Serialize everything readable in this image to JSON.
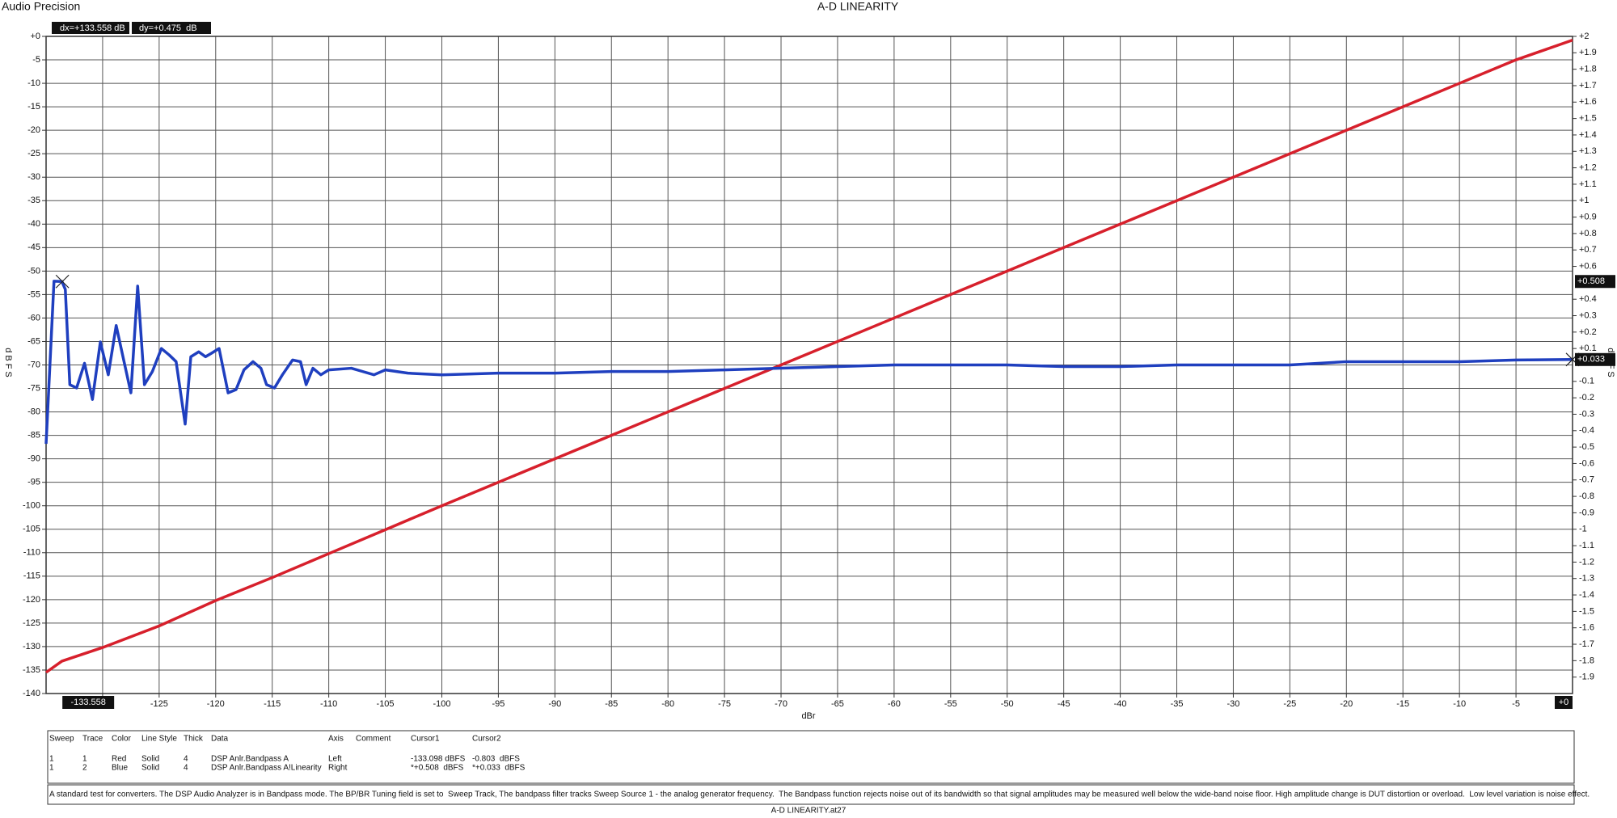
{
  "brand": "Audio Precision",
  "chart_data": {
    "type": "line",
    "title": "A-D LINEARITY",
    "xlabel": "dBr",
    "ylabel": "dBFS",
    "y2label": "dBFS",
    "xlim": [
      -135,
      0
    ],
    "ylim": [
      -140,
      0
    ],
    "y2lim": [
      -2,
      2
    ],
    "grid": true,
    "xticks": [
      -130,
      -125,
      -120,
      -115,
      -110,
      -105,
      -100,
      -95,
      -90,
      -85,
      -80,
      -75,
      -70,
      -65,
      -60,
      -55,
      -50,
      -45,
      -40,
      -35,
      -30,
      -25,
      -20,
      -15,
      -10,
      -5
    ],
    "yticks": [
      {
        "value": 0,
        "label": "+0"
      },
      -5,
      -10,
      -15,
      -20,
      -25,
      -30,
      -35,
      -40,
      -45,
      -50,
      -55,
      -60,
      -65,
      -70,
      -75,
      -80,
      -85,
      -90,
      -95,
      -100,
      -105,
      -110,
      -115,
      -120,
      -125,
      -130,
      -135,
      -140
    ],
    "y2ticks": [
      {
        "value": 2,
        "label": "+2"
      },
      {
        "value": 1.9,
        "label": "+1.9"
      },
      {
        "value": 1.8,
        "label": "+1.8"
      },
      {
        "value": 1.7,
        "label": "+1.7"
      },
      {
        "value": 1.6,
        "label": "+1.6"
      },
      {
        "value": 1.5,
        "label": "+1.5"
      },
      {
        "value": 1.4,
        "label": "+1.4"
      },
      {
        "value": 1.3,
        "label": "+1.3"
      },
      {
        "value": 1.2,
        "label": "+1.2"
      },
      {
        "value": 1.1,
        "label": "+1.1"
      },
      {
        "value": 1,
        "label": "+1"
      },
      {
        "value": 0.9,
        "label": "+0.9"
      },
      {
        "value": 0.8,
        "label": "+0.8"
      },
      {
        "value": 0.7,
        "label": "+0.7"
      },
      {
        "value": 0.6,
        "label": "+0.6"
      },
      {
        "value": 0.4,
        "label": "+0.4"
      },
      {
        "value": 0.3,
        "label": "+0.3"
      },
      {
        "value": 0.2,
        "label": "+0.2"
      },
      {
        "value": 0.1,
        "label": "+0.1"
      },
      -0.1,
      -0.2,
      -0.3,
      -0.4,
      -0.5,
      -0.6,
      -0.7,
      -0.8,
      -0.9,
      -1,
      -1.1,
      -1.2,
      -1.3,
      -1.4,
      -1.5,
      -1.6,
      -1.7,
      -1.8,
      -1.9
    ],
    "series": [
      {
        "color": "#d7202c",
        "axis": "y",
        "x": [
          -135,
          -133.6,
          -130,
          -125,
          -120,
          -115,
          -110,
          -105,
          -100,
          -90,
          -80,
          -70,
          -60,
          -50,
          -40,
          -30,
          -20,
          -10,
          -5,
          0
        ],
        "values": [
          -135.5,
          -133.1,
          -130.2,
          -125.6,
          -120.2,
          -115.3,
          -110.2,
          -105.1,
          -100,
          -90,
          -80,
          -70,
          -60,
          -50,
          -40,
          -30,
          -20,
          -10,
          -5,
          -0.8
        ]
      },
      {
        "color": "#1f3fbf",
        "axis": "y2",
        "x": [
          -135,
          -134.3,
          -133.6,
          -133.3,
          -132.9,
          -132.3,
          -131.6,
          -130.9,
          -130.2,
          -129.5,
          -128.8,
          -128.2,
          -127.5,
          -126.9,
          -126.3,
          -125.6,
          -124.8,
          -124.1,
          -123.5,
          -122.7,
          -122.2,
          -121.5,
          -120.9,
          -120.4,
          -119.7,
          -118.9,
          -118.2,
          -117.5,
          -116.7,
          -116,
          -115.5,
          -114.8,
          -114.1,
          -113.2,
          -112.5,
          -112,
          -111.4,
          -110.7,
          -110,
          -108,
          -107,
          -106,
          -105,
          -103,
          -100,
          -95,
          -90,
          -85,
          -80,
          -75,
          -70,
          -65,
          -60,
          -55,
          -50,
          -45,
          -40,
          -35,
          -30,
          -25,
          -20,
          -15,
          -10,
          -5,
          0
        ],
        "values": [
          -0.48,
          0.51,
          0.508,
          0.46,
          -0.12,
          -0.14,
          0.01,
          -0.21,
          0.14,
          -0.06,
          0.24,
          0.05,
          -0.17,
          0.48,
          -0.12,
          -0.04,
          0.1,
          0.06,
          0.02,
          -0.36,
          0.05,
          0.08,
          0.05,
          0.07,
          0.1,
          -0.17,
          -0.15,
          -0.03,
          0.02,
          -0.02,
          -0.12,
          -0.14,
          -0.06,
          0.03,
          0.02,
          -0.12,
          -0.02,
          -0.06,
          -0.03,
          -0.02,
          -0.04,
          -0.06,
          -0.03,
          -0.05,
          -0.06,
          -0.05,
          -0.05,
          -0.04,
          -0.04,
          -0.03,
          -0.02,
          -0.01,
          0,
          0,
          0,
          -0.01,
          -0.01,
          0,
          0,
          0,
          0.02,
          0.02,
          0.02,
          0.03,
          0.033
        ]
      }
    ],
    "cursors": {
      "dx": "dx=+133.558 dB",
      "dy": "dy=+0.475  dB",
      "x1": {
        "value": -133.558,
        "label": "-133.558"
      },
      "x2": {
        "value": 0,
        "label": "+0"
      },
      "y1": {
        "value": 0.508,
        "label": "+0.508"
      },
      "y2": {
        "value": 0.033,
        "label": "+0.033"
      }
    }
  },
  "legend_table": {
    "header": [
      "Sweep",
      "Trace",
      "Color",
      "Line Style",
      "Thick",
      "Data",
      "Axis",
      "Comment",
      "Cursor1",
      "Cursor2"
    ],
    "rows": [
      [
        "1",
        "1",
        "Red",
        "Solid",
        "4",
        "DSP Anlr.Bandpass A",
        "Left",
        "-133.098 dBFS",
        "-0.803  dBFS"
      ],
      [
        "1",
        "2",
        "Blue",
        "Solid",
        "4",
        "DSP Anlr.Bandpass A!Linearity",
        "Right",
        "*+0.508  dBFS",
        "*+0.033  dBFS"
      ]
    ]
  },
  "note": "A standard test for converters. The DSP Audio Analyzer is in Bandpass mode. The BP/BR Tuning field is set to  Sweep Track, The bandpass filter tracks Sweep Source 1 - the analog generator frequency.  The Bandpass function rejects noise out of its bandwidth so that signal amplitudes may be measured well below the wide-band noise floor. High amplitude change is DUT distortion or overload.  Low level variation is noise effect.",
  "footer": "A-D LINEARITY.at27"
}
